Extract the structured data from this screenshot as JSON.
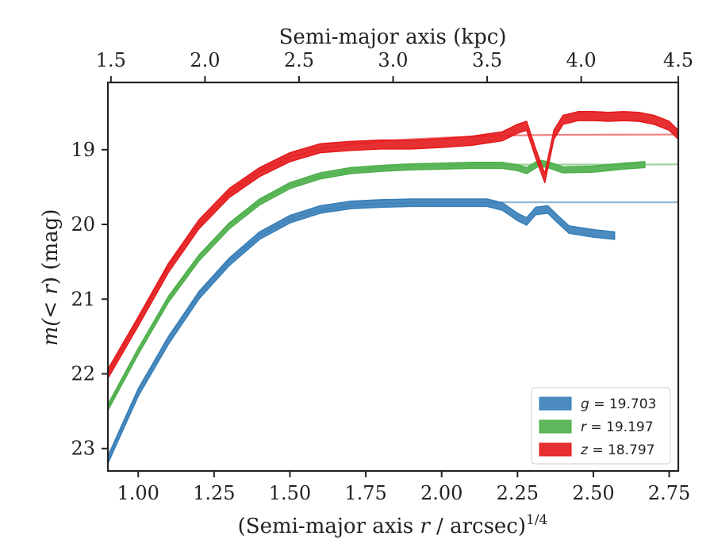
{
  "chart_data": {
    "type": "line",
    "top_xlabel": "Semi-major axis (kpc)",
    "xlabel_main": "(Semi-major axis ",
    "xlabel_var": "r",
    "xlabel_rest": " / arcsec)",
    "xlabel_exp": "1/4",
    "ylabel_pre": "m(",
    "ylabel_var": "< r",
    "ylabel_post": ") (mag)",
    "xlim": [
      0.9,
      2.78
    ],
    "ylim": [
      23.3,
      18.1
    ],
    "y_inverted": true,
    "x_ticks": [
      1.0,
      1.25,
      1.5,
      1.75,
      2.0,
      2.25,
      2.5,
      2.75
    ],
    "x_tick_labels": [
      "1.00",
      "1.25",
      "1.50",
      "1.75",
      "2.00",
      "2.25",
      "2.50",
      "2.75"
    ],
    "y_ticks": [
      19,
      20,
      21,
      22,
      23
    ],
    "y_tick_labels": [
      "19",
      "20",
      "21",
      "22",
      "23"
    ],
    "top_ticks": [
      1.5,
      2.0,
      2.5,
      3.0,
      3.5,
      4.0,
      4.5
    ],
    "top_tick_labels": [
      "1.5",
      "2.0",
      "2.5",
      "3.0",
      "3.5",
      "4.0",
      "4.5"
    ],
    "top_tick_positions": [
      0.91,
      1.22,
      1.53,
      1.84,
      2.15,
      2.46,
      2.78
    ],
    "legend_position": "lower-right",
    "series": [
      {
        "band": "g",
        "legend_label": "g = 19.703",
        "asymptote": 19.703,
        "color": "#377eb8",
        "x": [
          0.9,
          1.0,
          1.1,
          1.2,
          1.3,
          1.4,
          1.5,
          1.6,
          1.7,
          1.8,
          1.9,
          2.0,
          2.1,
          2.15,
          2.2,
          2.25,
          2.28,
          2.31,
          2.35,
          2.38,
          2.42,
          2.5,
          2.57
        ],
        "y": [
          23.15,
          22.25,
          21.55,
          20.95,
          20.5,
          20.15,
          19.93,
          19.8,
          19.74,
          19.72,
          19.71,
          19.71,
          19.71,
          19.71,
          19.76,
          19.9,
          19.96,
          19.82,
          19.8,
          19.92,
          20.07,
          20.12,
          20.15
        ],
        "half_width": 0.05,
        "model_x": [
          0.9,
          1.0,
          1.1,
          1.2,
          1.3,
          1.4,
          1.5,
          1.6,
          1.7,
          1.8,
          1.9,
          2.0,
          2.2,
          2.4,
          2.78
        ],
        "model_y": [
          23.12,
          22.22,
          21.5,
          20.93,
          20.49,
          20.15,
          19.93,
          19.81,
          19.75,
          19.72,
          19.71,
          19.705,
          19.703,
          19.703,
          19.703
        ]
      },
      {
        "band": "r",
        "legend_label": "r = 19.197",
        "asymptote": 19.197,
        "color": "#4daf4a",
        "x": [
          0.9,
          1.0,
          1.1,
          1.2,
          1.3,
          1.4,
          1.5,
          1.6,
          1.7,
          1.8,
          1.9,
          2.0,
          2.1,
          2.2,
          2.25,
          2.28,
          2.32,
          2.35,
          2.4,
          2.5,
          2.6,
          2.67
        ],
        "y": [
          22.45,
          21.7,
          21.0,
          20.45,
          20.02,
          19.7,
          19.48,
          19.35,
          19.28,
          19.25,
          19.23,
          19.22,
          19.21,
          19.21,
          19.24,
          19.28,
          19.18,
          19.2,
          19.27,
          19.26,
          19.22,
          19.2
        ],
        "half_width": 0.04,
        "model_x": [
          0.9,
          1.0,
          1.1,
          1.2,
          1.3,
          1.4,
          1.5,
          1.6,
          1.7,
          1.8,
          1.9,
          2.0,
          2.2,
          2.4,
          2.78
        ],
        "model_y": [
          22.45,
          21.68,
          20.98,
          20.43,
          20.0,
          19.69,
          19.47,
          19.35,
          19.28,
          19.24,
          19.22,
          19.21,
          19.2,
          19.198,
          19.197
        ]
      },
      {
        "band": "z",
        "legend_label": "z = 18.797",
        "asymptote": 18.797,
        "color": "#e41a1c",
        "x": [
          0.9,
          1.0,
          1.1,
          1.2,
          1.3,
          1.4,
          1.5,
          1.6,
          1.7,
          1.8,
          1.9,
          2.0,
          2.1,
          2.2,
          2.25,
          2.28,
          2.31,
          2.34,
          2.37,
          2.4,
          2.45,
          2.5,
          2.55,
          2.6,
          2.65,
          2.7,
          2.75,
          2.78
        ],
        "y": [
          22.0,
          21.3,
          20.58,
          20.0,
          19.58,
          19.3,
          19.1,
          18.98,
          18.95,
          18.93,
          18.93,
          18.91,
          18.88,
          18.82,
          18.72,
          18.68,
          19.05,
          19.38,
          18.8,
          18.6,
          18.55,
          18.55,
          18.56,
          18.55,
          18.56,
          18.6,
          18.68,
          18.8
        ],
        "half_width": 0.06,
        "model_x": [
          0.9,
          1.0,
          1.1,
          1.2,
          1.3,
          1.4,
          1.5,
          1.6,
          1.7,
          1.8,
          1.9,
          2.0,
          2.2,
          2.4,
          2.78
        ],
        "model_y": [
          22.0,
          21.28,
          20.56,
          20.0,
          19.58,
          19.29,
          19.1,
          18.99,
          18.93,
          18.89,
          18.86,
          18.84,
          18.81,
          18.8,
          18.797
        ]
      }
    ]
  }
}
